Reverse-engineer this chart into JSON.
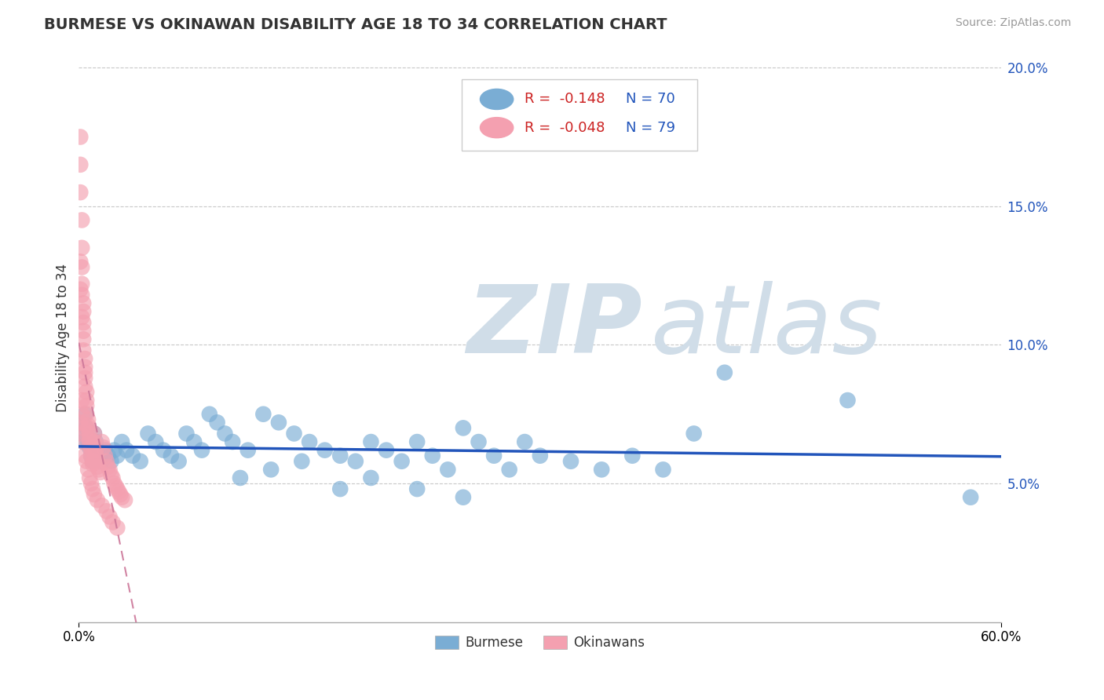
{
  "title": "BURMESE VS OKINAWAN DISABILITY AGE 18 TO 34 CORRELATION CHART",
  "source_text": "Source: ZipAtlas.com",
  "ylabel": "Disability Age 18 to 34",
  "xlim": [
    0.0,
    0.6
  ],
  "ylim": [
    0.0,
    0.205
  ],
  "xticks": [
    0.0,
    0.6
  ],
  "xticklabels": [
    "0.0%",
    "60.0%"
  ],
  "yticks_right": [
    0.05,
    0.1,
    0.15,
    0.2
  ],
  "ytickslabels_right": [
    "5.0%",
    "10.0%",
    "15.0%",
    "20.0%"
  ],
  "grid_color": "#c8c8c8",
  "background_color": "#ffffff",
  "title_color": "#333333",
  "watermark_zip": "ZIP",
  "watermark_atlas": "atlas",
  "watermark_color": "#d0dde8",
  "burmese_color": "#7aadd4",
  "okinawan_color": "#f4a0b0",
  "burmese_line_color": "#2255bb",
  "okinawan_line_color": "#cc7799",
  "legend_r_color": "#cc2222",
  "legend_n_color": "#2255bb",
  "legend_r_burmese": "R =  -0.148",
  "legend_n_burmese": "N = 70",
  "legend_r_okinawan": "R =  -0.048",
  "legend_n_okinawan": "N = 79",
  "legend_label_burmese": "Burmese",
  "legend_label_okinawan": "Okinawans",
  "burmese_x": [
    0.001,
    0.002,
    0.003,
    0.004,
    0.005,
    0.006,
    0.007,
    0.008,
    0.009,
    0.01,
    0.011,
    0.012,
    0.013,
    0.015,
    0.017,
    0.019,
    0.021,
    0.023,
    0.025,
    0.028,
    0.031,
    0.035,
    0.04,
    0.045,
    0.05,
    0.055,
    0.06,
    0.065,
    0.07,
    0.075,
    0.08,
    0.085,
    0.09,
    0.095,
    0.1,
    0.11,
    0.12,
    0.13,
    0.14,
    0.15,
    0.16,
    0.17,
    0.18,
    0.19,
    0.2,
    0.21,
    0.22,
    0.23,
    0.24,
    0.25,
    0.26,
    0.27,
    0.28,
    0.29,
    0.3,
    0.32,
    0.34,
    0.36,
    0.38,
    0.4,
    0.25,
    0.22,
    0.19,
    0.17,
    0.145,
    0.125,
    0.105,
    0.58,
    0.5,
    0.42
  ],
  "burmese_y": [
    0.072,
    0.068,
    0.065,
    0.075,
    0.07,
    0.065,
    0.063,
    0.06,
    0.058,
    0.068,
    0.065,
    0.062,
    0.06,
    0.058,
    0.062,
    0.06,
    0.058,
    0.062,
    0.06,
    0.065,
    0.062,
    0.06,
    0.058,
    0.068,
    0.065,
    0.062,
    0.06,
    0.058,
    0.068,
    0.065,
    0.062,
    0.075,
    0.072,
    0.068,
    0.065,
    0.062,
    0.075,
    0.072,
    0.068,
    0.065,
    0.062,
    0.06,
    0.058,
    0.065,
    0.062,
    0.058,
    0.065,
    0.06,
    0.055,
    0.07,
    0.065,
    0.06,
    0.055,
    0.065,
    0.06,
    0.058,
    0.055,
    0.06,
    0.055,
    0.068,
    0.045,
    0.048,
    0.052,
    0.048,
    0.058,
    0.055,
    0.052,
    0.045,
    0.08,
    0.09
  ],
  "okinawan_x": [
    0.001,
    0.001,
    0.001,
    0.002,
    0.002,
    0.002,
    0.002,
    0.002,
    0.003,
    0.003,
    0.003,
    0.003,
    0.003,
    0.003,
    0.004,
    0.004,
    0.004,
    0.004,
    0.004,
    0.005,
    0.005,
    0.005,
    0.005,
    0.006,
    0.006,
    0.006,
    0.007,
    0.007,
    0.007,
    0.008,
    0.008,
    0.008,
    0.009,
    0.009,
    0.01,
    0.01,
    0.011,
    0.011,
    0.012,
    0.012,
    0.013,
    0.014,
    0.015,
    0.016,
    0.017,
    0.018,
    0.019,
    0.02,
    0.021,
    0.022,
    0.023,
    0.024,
    0.025,
    0.026,
    0.027,
    0.028,
    0.03,
    0.001,
    0.001,
    0.002,
    0.002,
    0.003,
    0.003,
    0.004,
    0.005,
    0.006,
    0.007,
    0.008,
    0.009,
    0.01,
    0.012,
    0.015,
    0.018,
    0.02,
    0.022,
    0.025,
    0.001,
    0.001,
    0.002
  ],
  "okinawan_y": [
    0.175,
    0.165,
    0.155,
    0.145,
    0.135,
    0.128,
    0.122,
    0.118,
    0.115,
    0.112,
    0.108,
    0.105,
    0.102,
    0.098,
    0.095,
    0.092,
    0.09,
    0.088,
    0.085,
    0.083,
    0.08,
    0.078,
    0.075,
    0.073,
    0.071,
    0.07,
    0.068,
    0.066,
    0.065,
    0.063,
    0.062,
    0.06,
    0.058,
    0.057,
    0.068,
    0.065,
    0.062,
    0.06,
    0.058,
    0.056,
    0.055,
    0.054,
    0.065,
    0.063,
    0.06,
    0.058,
    0.056,
    0.055,
    0.053,
    0.052,
    0.05,
    0.049,
    0.048,
    0.047,
    0.046,
    0.045,
    0.044,
    0.068,
    0.072,
    0.08,
    0.075,
    0.07,
    0.065,
    0.06,
    0.058,
    0.055,
    0.052,
    0.05,
    0.048,
    0.046,
    0.044,
    0.042,
    0.04,
    0.038,
    0.036,
    0.034,
    0.13,
    0.12,
    0.11
  ]
}
